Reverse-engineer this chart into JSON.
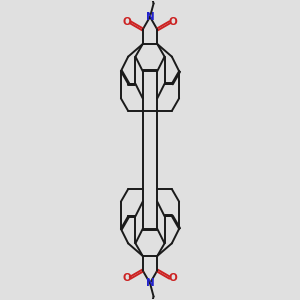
{
  "background_color": "#e0e0e0",
  "bond_color": "#1a1a1a",
  "nitrogen_color": "#2222cc",
  "oxygen_color": "#cc2222",
  "bond_width": 1.4,
  "dbl_sep": 0.018,
  "figsize": [
    3.0,
    3.0
  ],
  "dpi": 100,
  "xlim": [
    -1.3,
    1.3
  ],
  "ylim": [
    -2.4,
    2.4
  ]
}
